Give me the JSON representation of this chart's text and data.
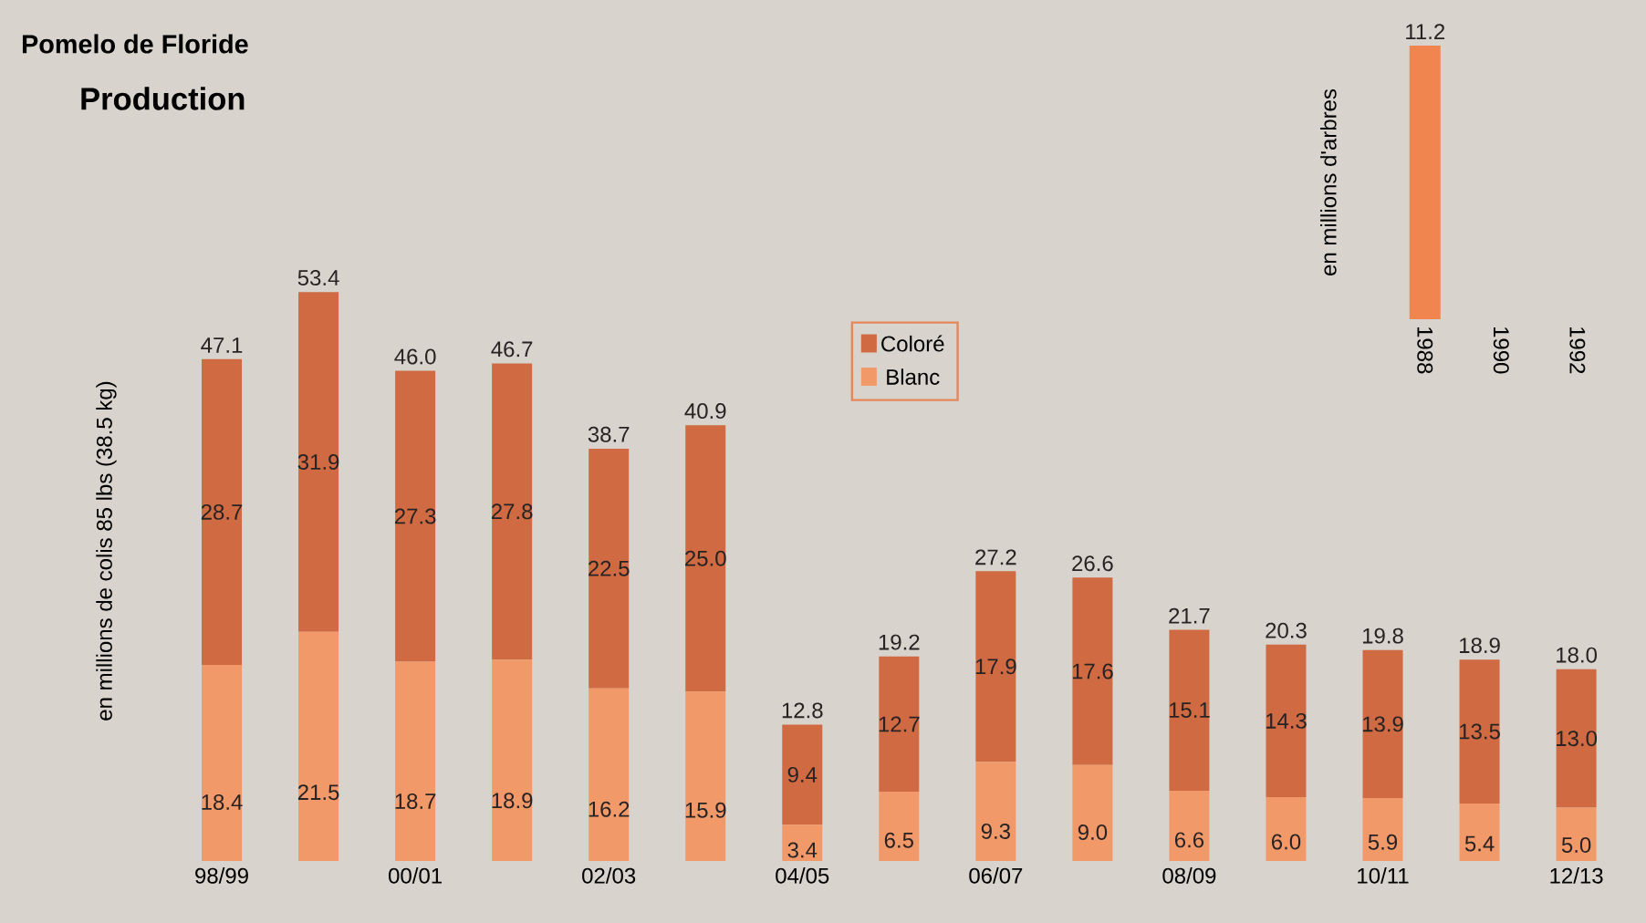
{
  "chart_data": [
    {
      "type": "bar",
      "title": "Pomelo de Floride",
      "subtitle": "Production",
      "ylabel": "en millions de colis 85 lbs (38.5 kg)",
      "categories": [
        "98/99",
        null,
        "00/01",
        null,
        "02/03",
        null,
        "04/05",
        null,
        "06/07",
        null,
        "08/09",
        null,
        "10/11",
        null,
        "12/13"
      ],
      "stacked": true,
      "legend": "top",
      "series": [
        {
          "name": "Blanc",
          "color": "#f2996a",
          "values": [
            18.4,
            21.5,
            18.7,
            18.9,
            16.2,
            15.9,
            3.4,
            6.5,
            9.3,
            9.0,
            6.6,
            6.0,
            5.9,
            5.4,
            5.0
          ],
          "value_labels": [
            "18.4",
            "21.5",
            "18.7",
            "18.9",
            "16.2",
            "15.9",
            "3.4",
            "6.5",
            "9.3",
            "9.0",
            "6.6",
            "6.0",
            "5.9",
            "5.4",
            "5.0"
          ]
        },
        {
          "name": "Coloré",
          "color": "#cf6a42",
          "values": [
            28.7,
            31.9,
            27.3,
            27.8,
            22.5,
            25.0,
            9.4,
            12.7,
            17.9,
            17.6,
            15.1,
            14.3,
            13.9,
            13.5,
            13.0
          ],
          "value_labels": [
            "28.7",
            "31.9",
            "27.3",
            "27.8",
            "22.5",
            "25.0",
            "9.4",
            "12.7",
            "17.9",
            "17.6",
            "15.1",
            "14.3",
            "13.9",
            "13.5",
            "13.0"
          ]
        }
      ],
      "totals": [
        "47.1",
        "53.4",
        "46.0",
        "46.7",
        "38.7",
        "40.9",
        "12.8",
        "19.2",
        "27.2",
        "26.6",
        "21.7",
        "20.3",
        "19.8",
        "18.9",
        "18.0"
      ]
    },
    {
      "type": "bar",
      "ylabel": "en millions d'arbres",
      "categories": [
        "1988",
        "1990",
        "1992"
      ],
      "color": "#f08550",
      "values": [
        11.2,
        null,
        null
      ],
      "value_labels": [
        "11.2",
        null,
        null
      ]
    }
  ]
}
